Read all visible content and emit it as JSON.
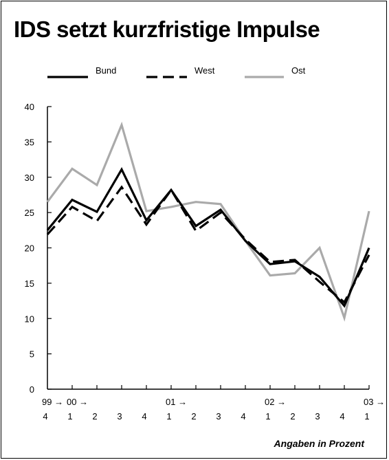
{
  "chart_data": {
    "type": "line",
    "title": "IDS setzt kurzfristige Impulse",
    "note": "Angaben in Prozent",
    "ylim": [
      0,
      40
    ],
    "yticks": [
      0,
      5,
      10,
      15,
      20,
      25,
      30,
      35,
      40
    ],
    "grid": false,
    "legend_position": "top",
    "categories": [
      "99-4",
      "00-1",
      "00-2",
      "00-3",
      "00-4",
      "01-1",
      "01-2",
      "01-3",
      "01-4",
      "02-1",
      "02-2",
      "02-3",
      "02-4",
      "03-1"
    ],
    "x_tick_labels": [
      "4",
      "1",
      "2",
      "3",
      "4",
      "1",
      "2",
      "3",
      "4",
      "1",
      "2",
      "3",
      "4",
      "1"
    ],
    "year_labels": [
      {
        "label": "99 →",
        "index": 0
      },
      {
        "label": "00 →",
        "index": 1
      },
      {
        "label": "01 →",
        "index": 5
      },
      {
        "label": "02 →",
        "index": 9
      },
      {
        "label": "03 →",
        "index": 13
      }
    ],
    "series": [
      {
        "name": "Bund",
        "color": "#000000",
        "dash": "solid",
        "values": [
          22.5,
          26.8,
          25.1,
          31.1,
          23.9,
          28.2,
          23.1,
          25.4,
          21.0,
          17.7,
          18.1,
          15.9,
          11.8,
          20.0
        ]
      },
      {
        "name": "West",
        "color": "#000000",
        "dash": "dashed",
        "values": [
          21.9,
          25.8,
          23.8,
          28.6,
          23.3,
          28.2,
          22.4,
          25.0,
          21.2,
          18.0,
          18.3,
          15.2,
          12.3,
          19.0
        ]
      },
      {
        "name": "Ost",
        "color": "#aaaaaa",
        "dash": "solid",
        "values": [
          26.5,
          31.2,
          28.9,
          37.4,
          25.2,
          25.8,
          26.5,
          26.2,
          21.0,
          16.1,
          16.4,
          20.0,
          10.1,
          25.2
        ]
      }
    ]
  }
}
